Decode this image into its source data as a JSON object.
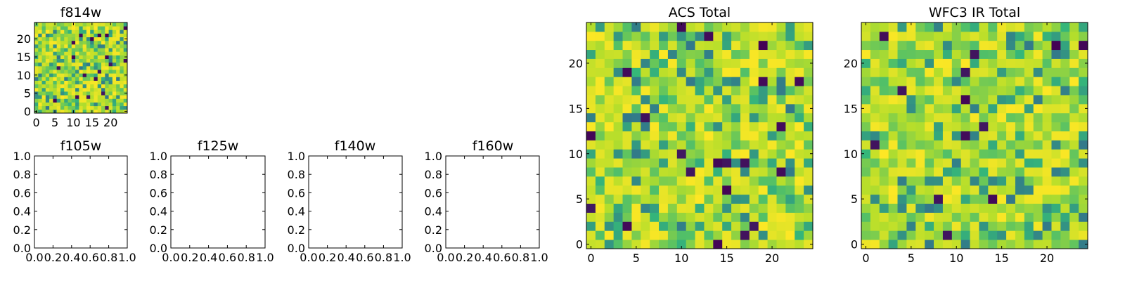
{
  "colormap": [
    "#440154",
    "#31688e",
    "#35b779",
    "#b5de2b",
    "#fde725"
  ],
  "colormap_name": "viridis",
  "chart_data": [
    {
      "type": "heatmap",
      "title": "f814w",
      "grid_size": 25,
      "seed": 814,
      "xlim": [
        -0.5,
        24.5
      ],
      "ylim": [
        -0.5,
        24.5
      ],
      "xticks": [
        0,
        5,
        10,
        15,
        20
      ],
      "yticks": [
        0,
        5,
        10,
        15,
        20
      ],
      "xtick_labels": [
        "0",
        "5",
        "10",
        "15",
        "20"
      ],
      "ytick_labels": [
        "0",
        "5",
        "10",
        "15",
        "20"
      ]
    },
    {
      "type": "empty",
      "title": "f105w",
      "xlim": [
        0,
        1
      ],
      "ylim": [
        0,
        1
      ],
      "xtick_labels": [
        "0.0",
        "0.2",
        "0.4",
        "0.6",
        "0.8",
        "1.0"
      ],
      "ytick_labels": [
        "0.0",
        "0.2",
        "0.4",
        "0.6",
        "0.8",
        "1.0"
      ]
    },
    {
      "type": "empty",
      "title": "f125w",
      "xlim": [
        0,
        1
      ],
      "ylim": [
        0,
        1
      ],
      "xtick_labels": [
        "0.0",
        "0.2",
        "0.4",
        "0.6",
        "0.8",
        "1.0"
      ],
      "ytick_labels": [
        "0.0",
        "0.2",
        "0.4",
        "0.6",
        "0.8",
        "1.0"
      ]
    },
    {
      "type": "empty",
      "title": "f140w",
      "xlim": [
        0,
        1
      ],
      "ylim": [
        0,
        1
      ],
      "xtick_labels": [
        "0.0",
        "0.2",
        "0.4",
        "0.6",
        "0.8",
        "1.0"
      ],
      "ytick_labels": [
        "0.0",
        "0.2",
        "0.4",
        "0.6",
        "0.8",
        "1.0"
      ]
    },
    {
      "type": "empty",
      "title": "f160w",
      "xlim": [
        0,
        1
      ],
      "ylim": [
        0,
        1
      ],
      "xtick_labels": [
        "0.0",
        "0.2",
        "0.4",
        "0.6",
        "0.8",
        "1.0"
      ],
      "ytick_labels": [
        "0.0",
        "0.2",
        "0.4",
        "0.6",
        "0.8",
        "1.0"
      ]
    },
    {
      "type": "heatmap",
      "title": "ACS Total",
      "grid_size": 25,
      "seed": 1701,
      "xlim": [
        -0.5,
        24.5
      ],
      "ylim": [
        -0.5,
        24.5
      ],
      "xticks": [
        0,
        5,
        10,
        15,
        20
      ],
      "yticks": [
        0,
        5,
        10,
        15,
        20
      ],
      "xtick_labels": [
        "0",
        "5",
        "10",
        "15",
        "20"
      ],
      "ytick_labels": [
        "0",
        "5",
        "10",
        "15",
        "20"
      ]
    },
    {
      "type": "heatmap",
      "title": "WFC3 IR Total",
      "grid_size": 25,
      "seed": 3303,
      "xlim": [
        -0.5,
        24.5
      ],
      "ylim": [
        -0.5,
        24.5
      ],
      "xticks": [
        0,
        5,
        10,
        15,
        20
      ],
      "yticks": [
        0,
        5,
        10,
        15,
        20
      ],
      "xtick_labels": [
        "0",
        "5",
        "10",
        "15",
        "20"
      ],
      "ytick_labels": [
        "0",
        "5",
        "10",
        "15",
        "20"
      ]
    }
  ]
}
